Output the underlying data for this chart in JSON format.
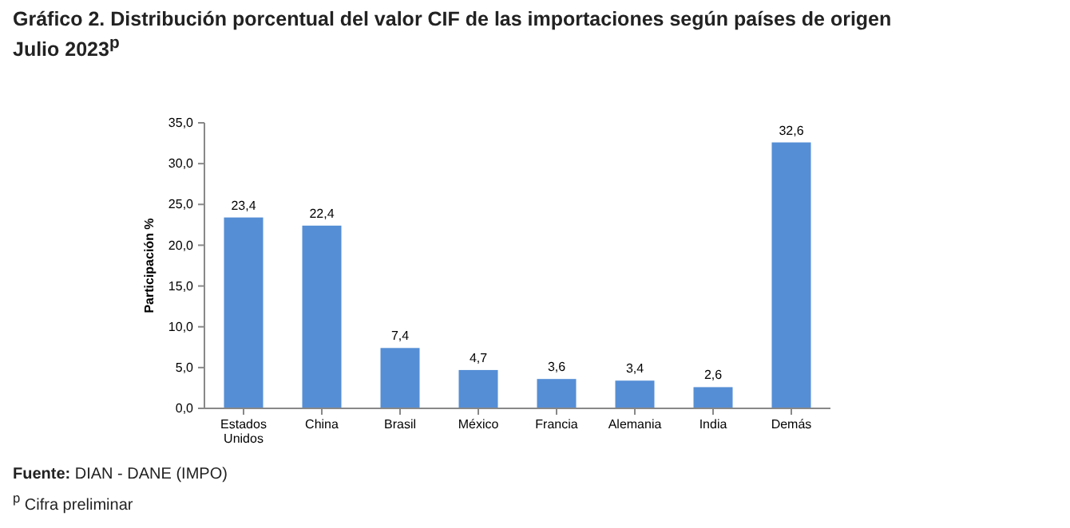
{
  "chart_data": {
    "type": "bar",
    "title": "Gráfico 2. Distribución porcentual del valor CIF de las importaciones según países de origen",
    "subtitle": "Julio 2023$^{p}$",
    "ylabel": "Participación %",
    "categories": [
      "Estados Unidos",
      "China",
      "Brasil",
      "México",
      "Francia",
      "Alemania",
      "India",
      "Demás"
    ],
    "values": [
      23.4,
      22.4,
      7.4,
      4.7,
      3.6,
      3.4,
      2.6,
      32.6
    ],
    "value_labels": [
      "23,4",
      "22,4",
      "7,4",
      "4,7",
      "3,6",
      "3,4",
      "2,6",
      "32,6"
    ],
    "color": "#558ed5",
    "ylim": [
      0,
      35
    ],
    "yticks": [
      {
        "value": 0,
        "label": "0,0"
      },
      {
        "value": 5,
        "label": "5,0"
      },
      {
        "value": 10,
        "label": "10,0"
      },
      {
        "value": 15,
        "label": "15,0"
      },
      {
        "value": 20,
        "label": "20,0"
      },
      {
        "value": 25,
        "label": "25,0"
      },
      {
        "value": 30,
        "label": "30,0"
      },
      {
        "value": 35,
        "label": "35,0"
      }
    ],
    "grid": false,
    "annotations": [
      "Fuente: DIAN - DANE (IMPO)",
      "$^{p}$ Cifra preliminar"
    ]
  }
}
